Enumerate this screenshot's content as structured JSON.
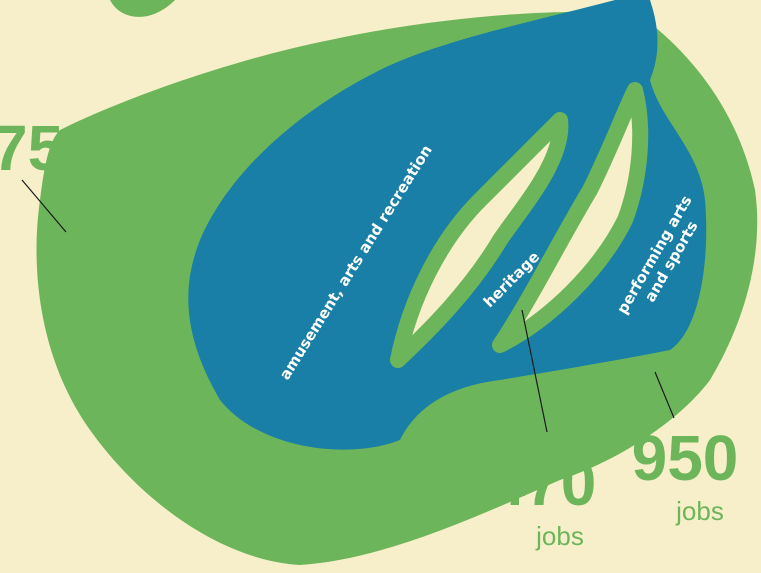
{
  "regions": [
    {
      "label": "amusement, arts and recreation"
    },
    {
      "label": "heritage"
    },
    {
      "label_lines": [
        "performing arts",
        "and sports"
      ]
    }
  ],
  "callouts": [
    {
      "value": 75
    },
    {
      "value": 470,
      "unit": "jobs"
    },
    {
      "value": 950,
      "unit": "jobs"
    }
  ]
}
